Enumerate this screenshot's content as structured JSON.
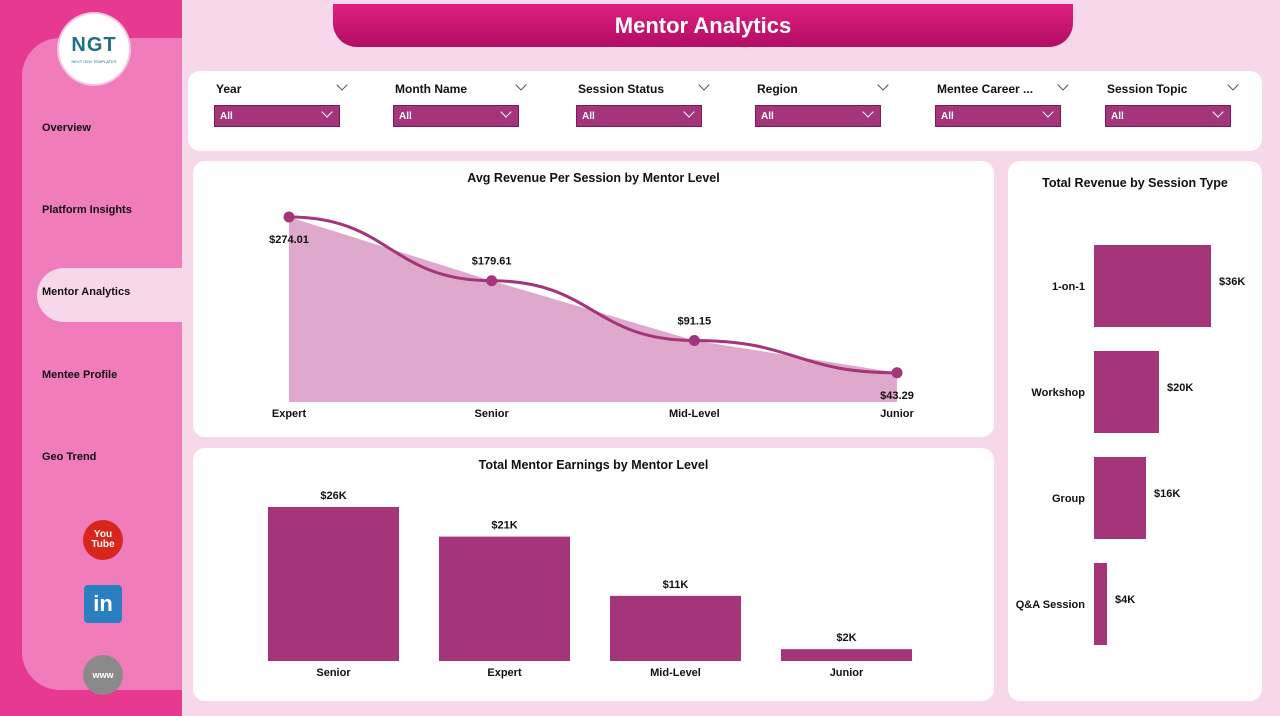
{
  "app": {
    "title": "Mentor Analytics",
    "logo_text": "NGT",
    "logo_subtext": "NEXT GEN TEMPLATES"
  },
  "sidebar": {
    "items": [
      {
        "label": "Overview"
      },
      {
        "label": "Platform Insights"
      },
      {
        "label": "Mentor Analytics",
        "active": true
      },
      {
        "label": "Mentee Profile"
      },
      {
        "label": "Geo Trend"
      }
    ],
    "social": [
      {
        "name": "youtube-icon",
        "text": "You\nTube"
      },
      {
        "name": "linkedin-icon",
        "text": "in"
      },
      {
        "name": "website-icon",
        "text": "www"
      }
    ]
  },
  "filters": [
    {
      "label": "Year",
      "value": "All"
    },
    {
      "label": "Month Name",
      "value": "All"
    },
    {
      "label": "Session Status",
      "value": "All"
    },
    {
      "label": "Region",
      "value": "All"
    },
    {
      "label": "Mentee Career ...",
      "value": "All"
    },
    {
      "label": "Session Topic",
      "value": "All"
    }
  ],
  "colors": {
    "accent": "#a4357a",
    "area_fill": "#dfa9cd",
    "sidebar": "#e7398f",
    "panel": "#f07cbc",
    "background": "#f7d7ea"
  },
  "chart_data": [
    {
      "id": "avg-revenue",
      "type": "area",
      "title": "Avg Revenue Per Session by Mentor Level",
      "categories": [
        "Expert",
        "Senior",
        "Mid-Level",
        "Junior"
      ],
      "values": [
        274.01,
        179.61,
        91.15,
        43.29
      ],
      "labels": [
        "$274.01",
        "$179.61",
        "$91.15",
        "$43.29"
      ],
      "ylim": [
        0,
        274.01
      ]
    },
    {
      "id": "mentor-earnings",
      "type": "bar",
      "title": "Total Mentor Earnings by Mentor Level",
      "categories": [
        "Senior",
        "Expert",
        "Mid-Level",
        "Junior"
      ],
      "values": [
        26,
        21,
        11,
        2
      ],
      "labels": [
        "$26K",
        "$21K",
        "$11K",
        "$2K"
      ],
      "unit": "K"
    },
    {
      "id": "revenue-by-type",
      "type": "bar",
      "orientation": "horizontal",
      "title": "Total Revenue by Session Type",
      "categories": [
        "1-on-1",
        "Workshop",
        "Group",
        "Q&A Session"
      ],
      "values": [
        36,
        20,
        16,
        4
      ],
      "labels": [
        "$36K",
        "$20K",
        "$16K",
        "$4K"
      ],
      "unit": "K"
    }
  ]
}
